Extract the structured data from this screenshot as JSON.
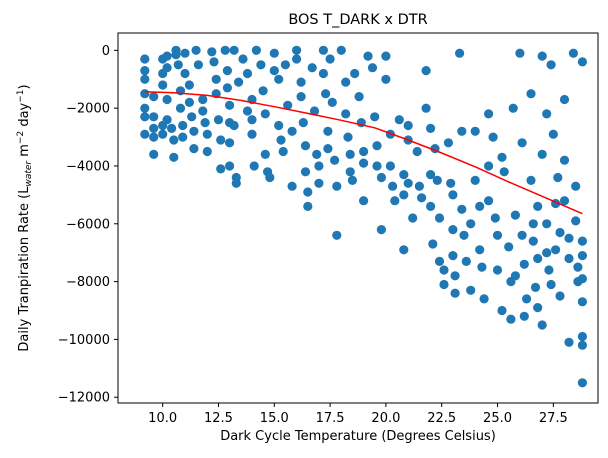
{
  "chart_data": {
    "type": "scatter",
    "title": "BOS T_DARK x DTR",
    "xlabel": "Dark Cycle Temperature (Degrees Celsius)",
    "ylabel": {
      "prefix": "Daily Tranpiration Rate (L",
      "subscript": "water",
      "middle": " m",
      "sup1": "−2",
      "middle2": " day",
      "sup2": "−1",
      "suffix": ")"
    },
    "xlim": [
      8.0,
      29.5
    ],
    "ylim": [
      -12200,
      600
    ],
    "x_ticks": [
      10.0,
      12.5,
      15.0,
      17.5,
      20.0,
      22.5,
      25.0,
      27.5
    ],
    "x_tick_labels": [
      "10.0",
      "12.5",
      "15.0",
      "17.5",
      "20.0",
      "22.5",
      "25.0",
      "27.5"
    ],
    "y_ticks": [
      0,
      -2000,
      -4000,
      -6000,
      -8000,
      -10000,
      -12000
    ],
    "y_tick_labels": [
      "0",
      "−2000",
      "−4000",
      "−6000",
      "−8000",
      "−10000",
      "−12000"
    ],
    "grid": false,
    "point_color": "#1f77b4",
    "trend_color": "#ff0000",
    "trendline": {
      "x": [
        9.2,
        10.5,
        12.0,
        13.5,
        15.0,
        16.5,
        18.0,
        19.5,
        21.0,
        22.5,
        24.0,
        25.5,
        27.0,
        28.8
      ],
      "y": [
        -1430,
        -1470,
        -1560,
        -1730,
        -1950,
        -2180,
        -2420,
        -2680,
        -3100,
        -3550,
        -4030,
        -4550,
        -5050,
        -5650
      ]
    },
    "series": [
      {
        "name": "observations",
        "points": [
          [
            9.2,
            -300
          ],
          [
            9.2,
            -700
          ],
          [
            9.2,
            -1000
          ],
          [
            9.2,
            -1500
          ],
          [
            9.2,
            -2000
          ],
          [
            9.2,
            -2300
          ],
          [
            9.2,
            -2900
          ],
          [
            9.6,
            -3000
          ],
          [
            9.6,
            -3600
          ],
          [
            9.6,
            -2700
          ],
          [
            9.6,
            -2300
          ],
          [
            9.6,
            -1600
          ],
          [
            10.0,
            -300
          ],
          [
            10.0,
            -800
          ],
          [
            10.0,
            -1200
          ],
          [
            10.0,
            -2600
          ],
          [
            10.0,
            -2900
          ],
          [
            10.2,
            -200
          ],
          [
            10.2,
            -600
          ],
          [
            10.2,
            -1700
          ],
          [
            10.2,
            -2400
          ],
          [
            10.4,
            -2700
          ],
          [
            10.5,
            -3700
          ],
          [
            10.5,
            -3100
          ],
          [
            10.6,
            -150
          ],
          [
            10.6,
            0
          ],
          [
            10.7,
            -500
          ],
          [
            10.8,
            -1400
          ],
          [
            10.8,
            -2000
          ],
          [
            10.9,
            -2600
          ],
          [
            10.9,
            -3000
          ],
          [
            11.0,
            -100
          ],
          [
            11.0,
            -800
          ],
          [
            11.2,
            -1200
          ],
          [
            11.2,
            -1800
          ],
          [
            11.3,
            -2300
          ],
          [
            11.4,
            -2800
          ],
          [
            11.4,
            -3400
          ],
          [
            11.5,
            0
          ],
          [
            11.6,
            -500
          ],
          [
            11.8,
            -1700
          ],
          [
            11.8,
            -2100
          ],
          [
            11.9,
            -2500
          ],
          [
            12.0,
            -2900
          ],
          [
            12.0,
            -3500
          ],
          [
            12.2,
            -50
          ],
          [
            12.3,
            -400
          ],
          [
            12.4,
            -1000
          ],
          [
            12.4,
            -1500
          ],
          [
            12.5,
            -2400
          ],
          [
            12.6,
            -4100
          ],
          [
            12.6,
            -3100
          ],
          [
            12.8,
            0
          ],
          [
            12.9,
            -700
          ],
          [
            12.9,
            -1300
          ],
          [
            13.0,
            -1900
          ],
          [
            13.0,
            -2500
          ],
          [
            13.0,
            -3200
          ],
          [
            13.0,
            -4000
          ],
          [
            13.2,
            0
          ],
          [
            13.2,
            -2600
          ],
          [
            13.3,
            -4400
          ],
          [
            13.3,
            -4600
          ],
          [
            13.4,
            -1100
          ],
          [
            13.6,
            -300
          ],
          [
            13.8,
            -800
          ],
          [
            13.8,
            -2100
          ],
          [
            14.0,
            -1700
          ],
          [
            14.0,
            -2400
          ],
          [
            14.0,
            -2900
          ],
          [
            14.1,
            -4000
          ],
          [
            14.2,
            0
          ],
          [
            14.4,
            -500
          ],
          [
            14.5,
            -1400
          ],
          [
            14.6,
            -2200
          ],
          [
            14.6,
            -3600
          ],
          [
            14.7,
            -4200
          ],
          [
            14.8,
            -4400
          ],
          [
            15.0,
            -100
          ],
          [
            15.0,
            -700
          ],
          [
            15.2,
            -1000
          ],
          [
            15.2,
            -2600
          ],
          [
            15.3,
            -3100
          ],
          [
            15.4,
            -3500
          ],
          [
            15.5,
            -500
          ],
          [
            15.6,
            -1900
          ],
          [
            15.8,
            -2800
          ],
          [
            15.8,
            -4700
          ],
          [
            16.0,
            0
          ],
          [
            16.0,
            -300
          ],
          [
            16.2,
            -1100
          ],
          [
            16.2,
            -1600
          ],
          [
            16.3,
            -2500
          ],
          [
            16.4,
            -3300
          ],
          [
            16.4,
            -4200
          ],
          [
            16.5,
            -4900
          ],
          [
            16.5,
            -5400
          ],
          [
            16.7,
            -600
          ],
          [
            16.8,
            -2100
          ],
          [
            16.9,
            -3600
          ],
          [
            17.0,
            -4000
          ],
          [
            17.0,
            -4600
          ],
          [
            17.2,
            0
          ],
          [
            17.2,
            -800
          ],
          [
            17.3,
            -1500
          ],
          [
            17.4,
            -2800
          ],
          [
            17.4,
            -3400
          ],
          [
            17.5,
            -300
          ],
          [
            17.6,
            -1800
          ],
          [
            17.7,
            -3800
          ],
          [
            17.8,
            -4700
          ],
          [
            17.8,
            -6400
          ],
          [
            18.0,
            0
          ],
          [
            18.2,
            -1100
          ],
          [
            18.2,
            -2200
          ],
          [
            18.3,
            -3000
          ],
          [
            18.4,
            -3600
          ],
          [
            18.4,
            -4200
          ],
          [
            18.5,
            -4500
          ],
          [
            18.6,
            -800
          ],
          [
            18.8,
            -1600
          ],
          [
            18.9,
            -2500
          ],
          [
            19.0,
            -3500
          ],
          [
            19.0,
            -3900
          ],
          [
            19.0,
            -5200
          ],
          [
            19.2,
            -200
          ],
          [
            19.4,
            -600
          ],
          [
            19.5,
            -2300
          ],
          [
            19.6,
            -3300
          ],
          [
            19.6,
            -4000
          ],
          [
            19.8,
            -4400
          ],
          [
            19.8,
            -6200
          ],
          [
            20.0,
            -200
          ],
          [
            20.0,
            -1000
          ],
          [
            20.2,
            -2900
          ],
          [
            20.2,
            -4000
          ],
          [
            20.3,
            -4700
          ],
          [
            20.4,
            -5200
          ],
          [
            20.6,
            -2400
          ],
          [
            20.8,
            -4300
          ],
          [
            20.8,
            -5000
          ],
          [
            20.8,
            -6900
          ],
          [
            21.0,
            -2600
          ],
          [
            21.0,
            -3100
          ],
          [
            21.0,
            -4600
          ],
          [
            21.2,
            -5800
          ],
          [
            21.4,
            -3500
          ],
          [
            21.5,
            -4700
          ],
          [
            21.6,
            -5100
          ],
          [
            21.8,
            -700
          ],
          [
            21.8,
            -2000
          ],
          [
            22.0,
            -2700
          ],
          [
            22.0,
            -4300
          ],
          [
            22.0,
            -5400
          ],
          [
            22.1,
            -6700
          ],
          [
            22.2,
            -3400
          ],
          [
            22.3,
            -4500
          ],
          [
            22.4,
            -5800
          ],
          [
            22.4,
            -7300
          ],
          [
            22.6,
            -7600
          ],
          [
            22.6,
            -8100
          ],
          [
            22.8,
            -3200
          ],
          [
            22.9,
            -4600
          ],
          [
            23.0,
            -5000
          ],
          [
            23.0,
            -6200
          ],
          [
            23.0,
            -7100
          ],
          [
            23.1,
            -7800
          ],
          [
            23.1,
            -8400
          ],
          [
            23.3,
            -100
          ],
          [
            23.4,
            -2800
          ],
          [
            23.4,
            -5500
          ],
          [
            23.5,
            -6400
          ],
          [
            23.6,
            -7300
          ],
          [
            23.8,
            -6000
          ],
          [
            23.8,
            -8300
          ],
          [
            24.0,
            -2800
          ],
          [
            24.0,
            -4500
          ],
          [
            24.2,
            -5400
          ],
          [
            24.2,
            -6900
          ],
          [
            24.3,
            -7500
          ],
          [
            24.4,
            -8600
          ],
          [
            24.6,
            -2200
          ],
          [
            24.6,
            -4000
          ],
          [
            24.6,
            -5200
          ],
          [
            24.8,
            -3000
          ],
          [
            24.9,
            -5800
          ],
          [
            25.0,
            -6400
          ],
          [
            25.0,
            -7600
          ],
          [
            25.2,
            -3700
          ],
          [
            25.2,
            -9000
          ],
          [
            25.3,
            -4200
          ],
          [
            25.5,
            -6800
          ],
          [
            25.6,
            -8000
          ],
          [
            25.6,
            -9300
          ],
          [
            25.7,
            -2000
          ],
          [
            25.8,
            -5700
          ],
          [
            25.8,
            -7800
          ],
          [
            26.0,
            -100
          ],
          [
            26.1,
            -3200
          ],
          [
            26.1,
            -6400
          ],
          [
            26.2,
            -7400
          ],
          [
            26.2,
            -9200
          ],
          [
            26.3,
            -8600
          ],
          [
            26.5,
            -1500
          ],
          [
            26.5,
            -4500
          ],
          [
            26.6,
            -6000
          ],
          [
            26.6,
            -6600
          ],
          [
            26.7,
            -8200
          ],
          [
            26.8,
            -5400
          ],
          [
            26.8,
            -7200
          ],
          [
            26.8,
            -8900
          ],
          [
            27.0,
            -200
          ],
          [
            27.0,
            -3600
          ],
          [
            27.0,
            -9500
          ],
          [
            27.2,
            -2200
          ],
          [
            27.2,
            -6000
          ],
          [
            27.2,
            -7000
          ],
          [
            27.3,
            -7600
          ],
          [
            27.4,
            -8100
          ],
          [
            27.4,
            -500
          ],
          [
            27.5,
            -2900
          ],
          [
            27.6,
            -5300
          ],
          [
            27.6,
            -6900
          ],
          [
            27.7,
            -4400
          ],
          [
            27.8,
            -8500
          ],
          [
            27.8,
            -6300
          ],
          [
            28.0,
            -1700
          ],
          [
            28.0,
            -3800
          ],
          [
            28.0,
            -5200
          ],
          [
            28.2,
            -6500
          ],
          [
            28.2,
            -7200
          ],
          [
            28.2,
            -10100
          ],
          [
            28.4,
            -100
          ],
          [
            28.5,
            -4700
          ],
          [
            28.5,
            -5900
          ],
          [
            28.6,
            -7500
          ],
          [
            28.6,
            -8000
          ],
          [
            28.8,
            -400
          ],
          [
            28.8,
            -6600
          ],
          [
            28.8,
            -7100
          ],
          [
            28.8,
            -7900
          ],
          [
            28.8,
            -8700
          ],
          [
            28.8,
            -9900
          ],
          [
            28.8,
            -10200
          ],
          [
            28.8,
            -11500
          ]
        ]
      }
    ]
  }
}
